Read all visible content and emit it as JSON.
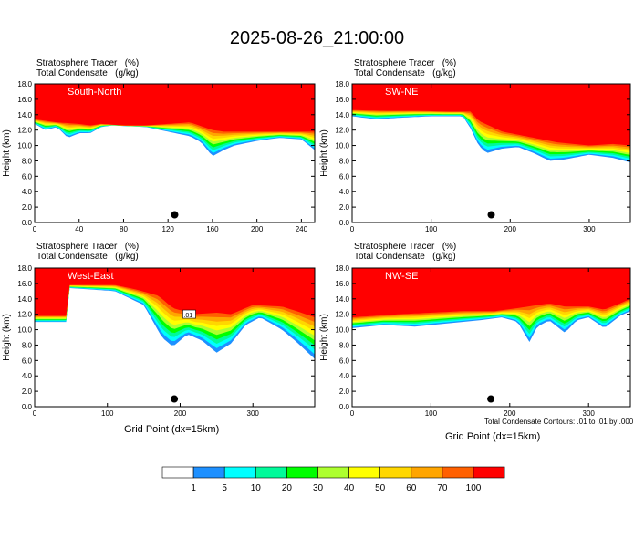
{
  "title": "2025-08-26_21:00:00",
  "panel_header": {
    "line1": "Stratosphere Tracer   (%)",
    "line2": "Total Condensate   (g/kg)"
  },
  "x_axis_title": "Grid Point (dx=15km)",
  "contour_note": "Total Condensate Contours: .01 to .01 by .000",
  "legend": {
    "levels": [
      "1",
      "5",
      "10",
      "20",
      "30",
      "40",
      "50",
      "60",
      "70",
      "100"
    ],
    "colors": [
      "#ffffff",
      "#1e90ff",
      "#00ffff",
      "#00fa9a",
      "#00ff00",
      "#adff2f",
      "#ffff00",
      "#ffd700",
      "#ffa500",
      "#ff6000",
      "#ff0000"
    ]
  },
  "chart_data": [
    {
      "type": "heatmap",
      "label": "South-North",
      "ylabel": "Height (km)",
      "xlim": [
        0,
        252
      ],
      "ylim": [
        0,
        18
      ],
      "xticks": [
        "0",
        "40",
        "80",
        "120",
        "160",
        "200",
        "240"
      ],
      "yticks": [
        "0.0",
        "2.0",
        "4.0",
        "6.0",
        "8.0",
        "10.0",
        "12.0",
        "14.0",
        "16.0",
        "18.0"
      ],
      "tracer_100_base_km": [
        [
          0,
          13.4
        ],
        [
          20,
          13.0
        ],
        [
          40,
          12.8
        ],
        [
          50,
          12.6
        ],
        [
          60,
          12.8
        ],
        [
          80,
          12.6
        ],
        [
          100,
          12.6
        ],
        [
          120,
          12.8
        ],
        [
          140,
          13.0
        ],
        [
          160,
          12.0
        ],
        [
          170,
          11.8
        ],
        [
          190,
          11.8
        ],
        [
          220,
          11.8
        ],
        [
          252,
          11.8
        ]
      ],
      "tracer_1_base_km": [
        [
          0,
          12.8
        ],
        [
          10,
          12.0
        ],
        [
          20,
          12.4
        ],
        [
          30,
          11.0
        ],
        [
          40,
          11.6
        ],
        [
          50,
          11.6
        ],
        [
          60,
          12.4
        ],
        [
          70,
          12.6
        ],
        [
          100,
          12.4
        ],
        [
          120,
          11.8
        ],
        [
          140,
          11.2
        ],
        [
          150,
          10.4
        ],
        [
          160,
          8.6
        ],
        [
          170,
          9.4
        ],
        [
          180,
          10.0
        ],
        [
          200,
          10.6
        ],
        [
          220,
          11.0
        ],
        [
          240,
          10.8
        ],
        [
          252,
          9.4
        ]
      ],
      "marker": {
        "x": 126,
        "y": 1.0
      }
    },
    {
      "type": "heatmap",
      "label": "SW-NE",
      "ylabel": "Height (km)",
      "xlim": [
        0,
        352
      ],
      "ylim": [
        0,
        18
      ],
      "xticks": [
        "0",
        "100",
        "200",
        "300"
      ],
      "yticks": [
        "0.0",
        "2.0",
        "4.0",
        "6.0",
        "8.0",
        "10.0",
        "12.0",
        "14.0",
        "16.0",
        "18.0"
      ],
      "tracer_100_base_km": [
        [
          0,
          14.6
        ],
        [
          40,
          14.5
        ],
        [
          80,
          14.5
        ],
        [
          120,
          14.4
        ],
        [
          150,
          14.4
        ],
        [
          160,
          13.2
        ],
        [
          190,
          11.8
        ],
        [
          220,
          11.2
        ],
        [
          260,
          10.4
        ],
        [
          300,
          10.0
        ],
        [
          330,
          10.2
        ],
        [
          352,
          10.0
        ]
      ],
      "tracer_1_base_km": [
        [
          0,
          13.8
        ],
        [
          30,
          13.4
        ],
        [
          60,
          13.6
        ],
        [
          100,
          13.8
        ],
        [
          140,
          13.8
        ],
        [
          150,
          12.2
        ],
        [
          160,
          10.0
        ],
        [
          170,
          9.0
        ],
        [
          190,
          9.6
        ],
        [
          210,
          9.8
        ],
        [
          230,
          9.0
        ],
        [
          250,
          8.0
        ],
        [
          270,
          8.2
        ],
        [
          300,
          8.8
        ],
        [
          330,
          8.4
        ],
        [
          352,
          7.8
        ]
      ],
      "marker": {
        "x": 176,
        "y": 1.0
      }
    },
    {
      "type": "heatmap",
      "label": "West-East",
      "ylabel": "Height (km)",
      "xlim": [
        0,
        385
      ],
      "ylim": [
        0,
        18
      ],
      "xticks": [
        "0",
        "100",
        "200",
        "300"
      ],
      "yticks": [
        "0.0",
        "2.0",
        "4.0",
        "6.0",
        "8.0",
        "10.0",
        "12.0",
        "14.0",
        "16.0",
        "18.0"
      ],
      "tracer_100_base_km": [
        [
          0,
          11.8
        ],
        [
          46,
          11.8
        ],
        [
          48,
          15.8
        ],
        [
          110,
          15.8
        ],
        [
          140,
          15.2
        ],
        [
          170,
          14.4
        ],
        [
          190,
          12.8
        ],
        [
          220,
          12.0
        ],
        [
          250,
          12.2
        ],
        [
          270,
          12.0
        ],
        [
          300,
          13.2
        ],
        [
          340,
          13.0
        ],
        [
          360,
          12.4
        ],
        [
          385,
          11.6
        ]
      ],
      "tracer_1_base_km": [
        [
          0,
          11.0
        ],
        [
          46,
          11.0
        ],
        [
          48,
          15.4
        ],
        [
          110,
          15.0
        ],
        [
          150,
          13.2
        ],
        [
          175,
          9.0
        ],
        [
          190,
          7.8
        ],
        [
          210,
          9.4
        ],
        [
          230,
          8.6
        ],
        [
          250,
          7.0
        ],
        [
          270,
          8.2
        ],
        [
          290,
          10.6
        ],
        [
          310,
          11.6
        ],
        [
          340,
          10.0
        ],
        [
          360,
          8.4
        ],
        [
          385,
          6.2
        ]
      ],
      "marker": {
        "x": 192,
        "y": 1.0
      },
      "annotation": ".01"
    },
    {
      "type": "heatmap",
      "label": "NW-SE",
      "ylabel": "Height (km)",
      "xlim": [
        0,
        353
      ],
      "ylim": [
        0,
        18
      ],
      "xticks": [
        "0",
        "100",
        "200",
        "300"
      ],
      "yticks": [
        "0.0",
        "2.0",
        "4.0",
        "6.0",
        "8.0",
        "10.0",
        "12.0",
        "14.0",
        "16.0",
        "18.0"
      ],
      "tracer_100_base_km": [
        [
          0,
          11.6
        ],
        [
          60,
          12.0
        ],
        [
          100,
          12.2
        ],
        [
          140,
          12.4
        ],
        [
          180,
          12.4
        ],
        [
          210,
          12.8
        ],
        [
          250,
          13.4
        ],
        [
          270,
          13.0
        ],
        [
          300,
          13.0
        ],
        [
          320,
          12.6
        ],
        [
          340,
          13.4
        ],
        [
          353,
          14.0
        ]
      ],
      "tracer_1_base_km": [
        [
          0,
          10.2
        ],
        [
          40,
          10.6
        ],
        [
          80,
          10.4
        ],
        [
          120,
          10.8
        ],
        [
          160,
          11.2
        ],
        [
          190,
          11.6
        ],
        [
          210,
          11.0
        ],
        [
          225,
          8.4
        ],
        [
          235,
          10.4
        ],
        [
          250,
          11.2
        ],
        [
          270,
          9.6
        ],
        [
          285,
          11.2
        ],
        [
          300,
          11.6
        ],
        [
          320,
          10.2
        ],
        [
          340,
          11.8
        ],
        [
          353,
          12.4
        ]
      ],
      "marker": {
        "x": 176,
        "y": 1.0
      }
    }
  ]
}
